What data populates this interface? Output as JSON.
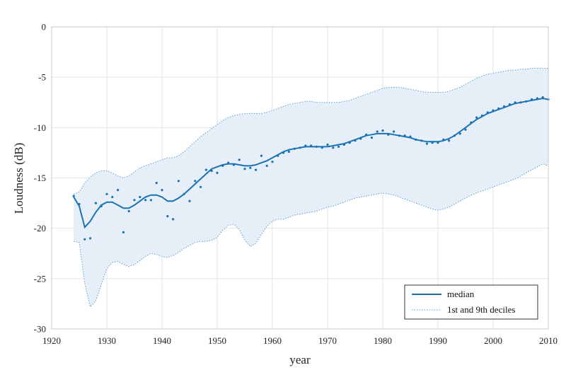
{
  "chart_data": {
    "type": "line",
    "title": "",
    "xlabel": "year",
    "ylabel": "Loudness (dB)",
    "xlim": [
      1920,
      2010
    ],
    "ylim": [
      -30,
      0
    ],
    "x_ticks": [
      1920,
      1930,
      1940,
      1950,
      1960,
      1970,
      1980,
      1990,
      2000,
      2010
    ],
    "y_ticks": [
      0,
      -5,
      -10,
      -15,
      -20,
      -25,
      -30
    ],
    "grid": true,
    "legend_position": "bottom-right",
    "colors": {
      "line": "#1a72b5",
      "band_fill": "#e6eef8",
      "band_edge": "#5aa0d2",
      "grid": "#e3e3e3"
    },
    "legend": [
      {
        "label": "median",
        "style": "solid-line"
      },
      {
        "label": "1st and 9th deciles",
        "style": "dotted-line"
      }
    ],
    "series": [
      {
        "name": "median",
        "style": "solid-line",
        "x": [
          1924,
          1925,
          1926,
          1927,
          1928,
          1929,
          1930,
          1931,
          1932,
          1933,
          1934,
          1935,
          1936,
          1937,
          1938,
          1939,
          1940,
          1941,
          1942,
          1943,
          1944,
          1945,
          1946,
          1947,
          1948,
          1949,
          1950,
          1951,
          1952,
          1953,
          1954,
          1955,
          1956,
          1957,
          1958,
          1959,
          1960,
          1961,
          1962,
          1963,
          1964,
          1965,
          1966,
          1967,
          1968,
          1969,
          1970,
          1971,
          1972,
          1973,
          1974,
          1975,
          1976,
          1977,
          1978,
          1979,
          1980,
          1981,
          1982,
          1983,
          1984,
          1985,
          1986,
          1987,
          1988,
          1989,
          1990,
          1991,
          1992,
          1993,
          1994,
          1995,
          1996,
          1997,
          1998,
          1999,
          2000,
          2001,
          2002,
          2003,
          2004,
          2005,
          2006,
          2007,
          2008,
          2009,
          2010
        ],
        "y": [
          -16.9,
          -17.8,
          -19.9,
          -19.3,
          -18.4,
          -17.7,
          -17.4,
          -17.4,
          -17.7,
          -18.0,
          -18.0,
          -17.7,
          -17.3,
          -16.9,
          -16.7,
          -16.7,
          -16.9,
          -17.3,
          -17.3,
          -17.0,
          -16.6,
          -16.1,
          -15.6,
          -15.1,
          -14.6,
          -14.1,
          -13.9,
          -13.7,
          -13.6,
          -13.6,
          -13.7,
          -13.8,
          -13.8,
          -13.7,
          -13.5,
          -13.3,
          -13.0,
          -12.7,
          -12.4,
          -12.2,
          -12.1,
          -12.0,
          -11.9,
          -11.9,
          -11.9,
          -11.9,
          -11.9,
          -11.8,
          -11.7,
          -11.6,
          -11.4,
          -11.2,
          -11.0,
          -10.8,
          -10.7,
          -10.6,
          -10.6,
          -10.6,
          -10.7,
          -10.8,
          -10.9,
          -11.0,
          -11.2,
          -11.3,
          -11.4,
          -11.4,
          -11.4,
          -11.3,
          -11.1,
          -10.8,
          -10.4,
          -10.0,
          -9.6,
          -9.2,
          -8.9,
          -8.6,
          -8.4,
          -8.2,
          -8.0,
          -7.8,
          -7.6,
          -7.5,
          -7.4,
          -7.3,
          -7.2,
          -7.1,
          -7.2
        ]
      },
      {
        "name": "1st and 9th deciles",
        "style": "dotted-band",
        "x": [
          1924,
          1925,
          1926,
          1927,
          1928,
          1929,
          1930,
          1931,
          1932,
          1933,
          1934,
          1935,
          1936,
          1937,
          1938,
          1939,
          1940,
          1941,
          1942,
          1943,
          1944,
          1945,
          1946,
          1947,
          1948,
          1949,
          1950,
          1951,
          1952,
          1953,
          1954,
          1955,
          1956,
          1957,
          1958,
          1959,
          1960,
          1961,
          1962,
          1963,
          1964,
          1965,
          1966,
          1967,
          1968,
          1969,
          1970,
          1971,
          1972,
          1973,
          1974,
          1975,
          1976,
          1977,
          1978,
          1979,
          1980,
          1981,
          1982,
          1983,
          1984,
          1985,
          1986,
          1987,
          1988,
          1989,
          1990,
          1991,
          1992,
          1993,
          1994,
          1995,
          1996,
          1997,
          1998,
          1999,
          2000,
          2001,
          2002,
          2003,
          2004,
          2005,
          2006,
          2007,
          2008,
          2009,
          2010
        ],
        "upper": [
          -16.6,
          -16.4,
          -15.5,
          -14.9,
          -14.5,
          -14.3,
          -14.3,
          -14.5,
          -14.8,
          -15.0,
          -14.8,
          -14.4,
          -14.0,
          -13.8,
          -13.6,
          -13.4,
          -13.2,
          -13.0,
          -13.0,
          -12.8,
          -12.4,
          -11.9,
          -11.4,
          -10.9,
          -10.5,
          -10.1,
          -9.7,
          -9.3,
          -9.0,
          -8.8,
          -8.7,
          -8.6,
          -8.6,
          -8.6,
          -8.6,
          -8.5,
          -8.3,
          -8.1,
          -7.9,
          -7.7,
          -7.6,
          -7.5,
          -7.4,
          -7.4,
          -7.5,
          -7.5,
          -7.5,
          -7.5,
          -7.5,
          -7.4,
          -7.3,
          -7.1,
          -6.9,
          -6.7,
          -6.5,
          -6.3,
          -6.1,
          -6.0,
          -6.0,
          -6.0,
          -6.1,
          -6.2,
          -6.3,
          -6.4,
          -6.5,
          -6.5,
          -6.5,
          -6.5,
          -6.4,
          -6.2,
          -6.0,
          -5.7,
          -5.4,
          -5.1,
          -4.9,
          -4.7,
          -4.6,
          -4.5,
          -4.4,
          -4.3,
          -4.3,
          -4.2,
          -4.2,
          -4.1,
          -4.1,
          -4.1,
          -4.1
        ],
        "lower": [
          -21.3,
          -21.4,
          -25.5,
          -27.8,
          -27.2,
          -25.6,
          -24.0,
          -23.4,
          -23.3,
          -23.6,
          -23.8,
          -23.6,
          -23.2,
          -22.8,
          -22.5,
          -22.6,
          -22.8,
          -22.9,
          -22.7,
          -22.4,
          -22.0,
          -21.7,
          -21.4,
          -21.3,
          -21.3,
          -21.2,
          -20.9,
          -20.2,
          -19.7,
          -19.6,
          -20.1,
          -21.2,
          -21.8,
          -21.5,
          -20.6,
          -19.8,
          -19.3,
          -19.1,
          -19.1,
          -18.9,
          -18.7,
          -18.6,
          -18.5,
          -18.4,
          -18.3,
          -18.1,
          -17.9,
          -17.8,
          -17.6,
          -17.4,
          -17.2,
          -17.0,
          -16.9,
          -16.8,
          -16.7,
          -16.6,
          -16.5,
          -16.6,
          -16.7,
          -16.9,
          -17.1,
          -17.3,
          -17.5,
          -17.7,
          -17.9,
          -18.1,
          -18.2,
          -18.1,
          -17.9,
          -17.6,
          -17.3,
          -17.0,
          -16.7,
          -16.5,
          -16.3,
          -16.1,
          -15.9,
          -15.7,
          -15.5,
          -15.3,
          -15.1,
          -14.8,
          -14.5,
          -14.2,
          -13.9,
          -13.6,
          -13.8
        ]
      },
      {
        "name": "yearly values",
        "style": "points",
        "x": [
          1924,
          1925,
          1926,
          1927,
          1928,
          1929,
          1930,
          1931,
          1932,
          1933,
          1934,
          1935,
          1936,
          1937,
          1938,
          1939,
          1940,
          1941,
          1942,
          1943,
          1944,
          1945,
          1946,
          1947,
          1948,
          1949,
          1950,
          1951,
          1952,
          1953,
          1954,
          1955,
          1956,
          1957,
          1958,
          1959,
          1960,
          1961,
          1962,
          1963,
          1964,
          1965,
          1966,
          1967,
          1968,
          1969,
          1970,
          1971,
          1972,
          1973,
          1974,
          1975,
          1976,
          1977,
          1978,
          1979,
          1980,
          1981,
          1982,
          1983,
          1984,
          1985,
          1986,
          1987,
          1988,
          1989,
          1990,
          1991,
          1992,
          1993,
          1994,
          1995,
          1996,
          1997,
          1998,
          1999,
          2000,
          2001,
          2002,
          2003,
          2004,
          2005,
          2006,
          2007,
          2008,
          2009,
          2010
        ],
        "y": [
          -16.8,
          -17.6,
          -21.1,
          -21.0,
          -17.5,
          -17.8,
          -16.6,
          -16.9,
          -16.2,
          -20.4,
          -18.3,
          -17.2,
          -16.9,
          -17.2,
          -17.2,
          -15.5,
          -16.2,
          -18.8,
          -19.1,
          -15.3,
          -16.6,
          -17.3,
          -15.3,
          -15.9,
          -14.2,
          -14.3,
          -14.5,
          -13.8,
          -13.5,
          -13.7,
          -13.2,
          -14.1,
          -14.0,
          -14.2,
          -12.8,
          -13.8,
          -13.4,
          -12.8,
          -12.5,
          -12.4,
          -12.1,
          -12.0,
          -11.8,
          -11.8,
          -11.9,
          -12.0,
          -11.7,
          -12.0,
          -11.9,
          -11.7,
          -11.5,
          -11.3,
          -11.1,
          -10.7,
          -11.0,
          -10.4,
          -10.3,
          -10.7,
          -10.4,
          -10.8,
          -10.8,
          -10.9,
          -11.2,
          -11.3,
          -11.6,
          -11.5,
          -11.5,
          -11.2,
          -11.3,
          -10.8,
          -10.6,
          -10.2,
          -9.5,
          -9.0,
          -8.8,
          -8.5,
          -8.3,
          -8.1,
          -7.9,
          -7.7,
          -7.5,
          -7.5,
          -7.4,
          -7.2,
          -7.1,
          -7.0,
          -7.2
        ]
      }
    ]
  }
}
